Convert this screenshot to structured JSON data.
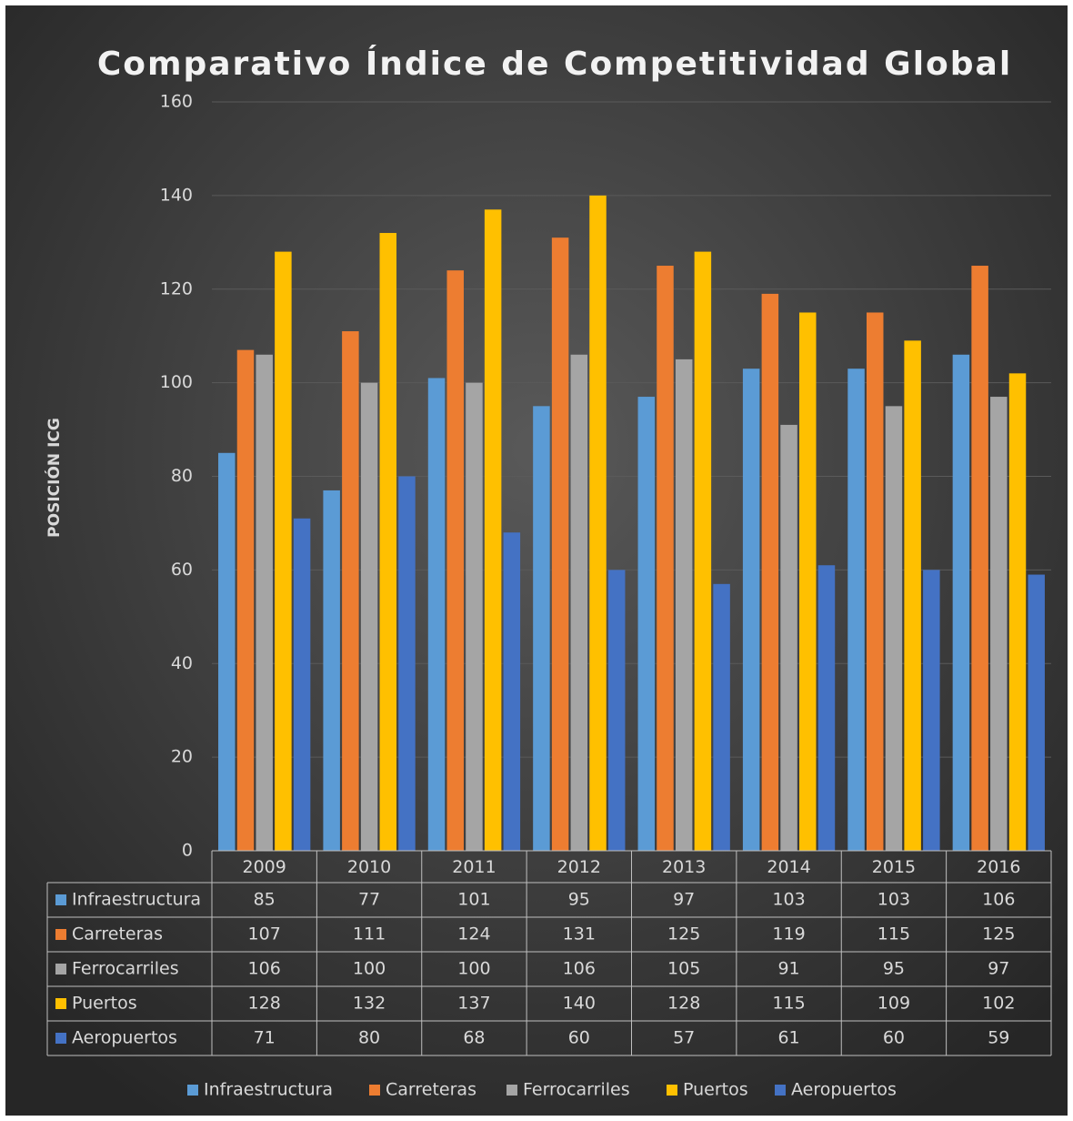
{
  "chart_data": {
    "type": "bar",
    "title": "Comparativo Índice de Competitividad Global",
    "y_label": "POSICIÓN ICG",
    "categories": [
      "2009",
      "2010",
      "2011",
      "2012",
      "2013",
      "2014",
      "2015",
      "2016"
    ],
    "series": [
      {
        "name": "Infraestructura",
        "color": "#5b9bd5",
        "values": [
          85,
          77,
          101,
          95,
          97,
          103,
          103,
          106
        ]
      },
      {
        "name": "Carreteras",
        "color": "#ed7d31",
        "values": [
          107,
          111,
          124,
          131,
          125,
          119,
          115,
          125
        ]
      },
      {
        "name": "Ferrocarriles",
        "color": "#a5a5a5",
        "values": [
          106,
          100,
          100,
          106,
          105,
          91,
          95,
          97
        ]
      },
      {
        "name": "Puertos",
        "color": "#ffc000",
        "values": [
          128,
          132,
          137,
          140,
          128,
          115,
          109,
          102
        ]
      },
      {
        "name": "Aeropuertos",
        "color": "#4472c4",
        "values": [
          71,
          80,
          68,
          60,
          57,
          61,
          60,
          59
        ]
      }
    ],
    "ylim": [
      0,
      160
    ],
    "yticks": [
      0,
      20,
      40,
      60,
      80,
      100,
      120,
      140,
      160
    ],
    "grid": true,
    "data_table": true,
    "legend": "bottom"
  }
}
